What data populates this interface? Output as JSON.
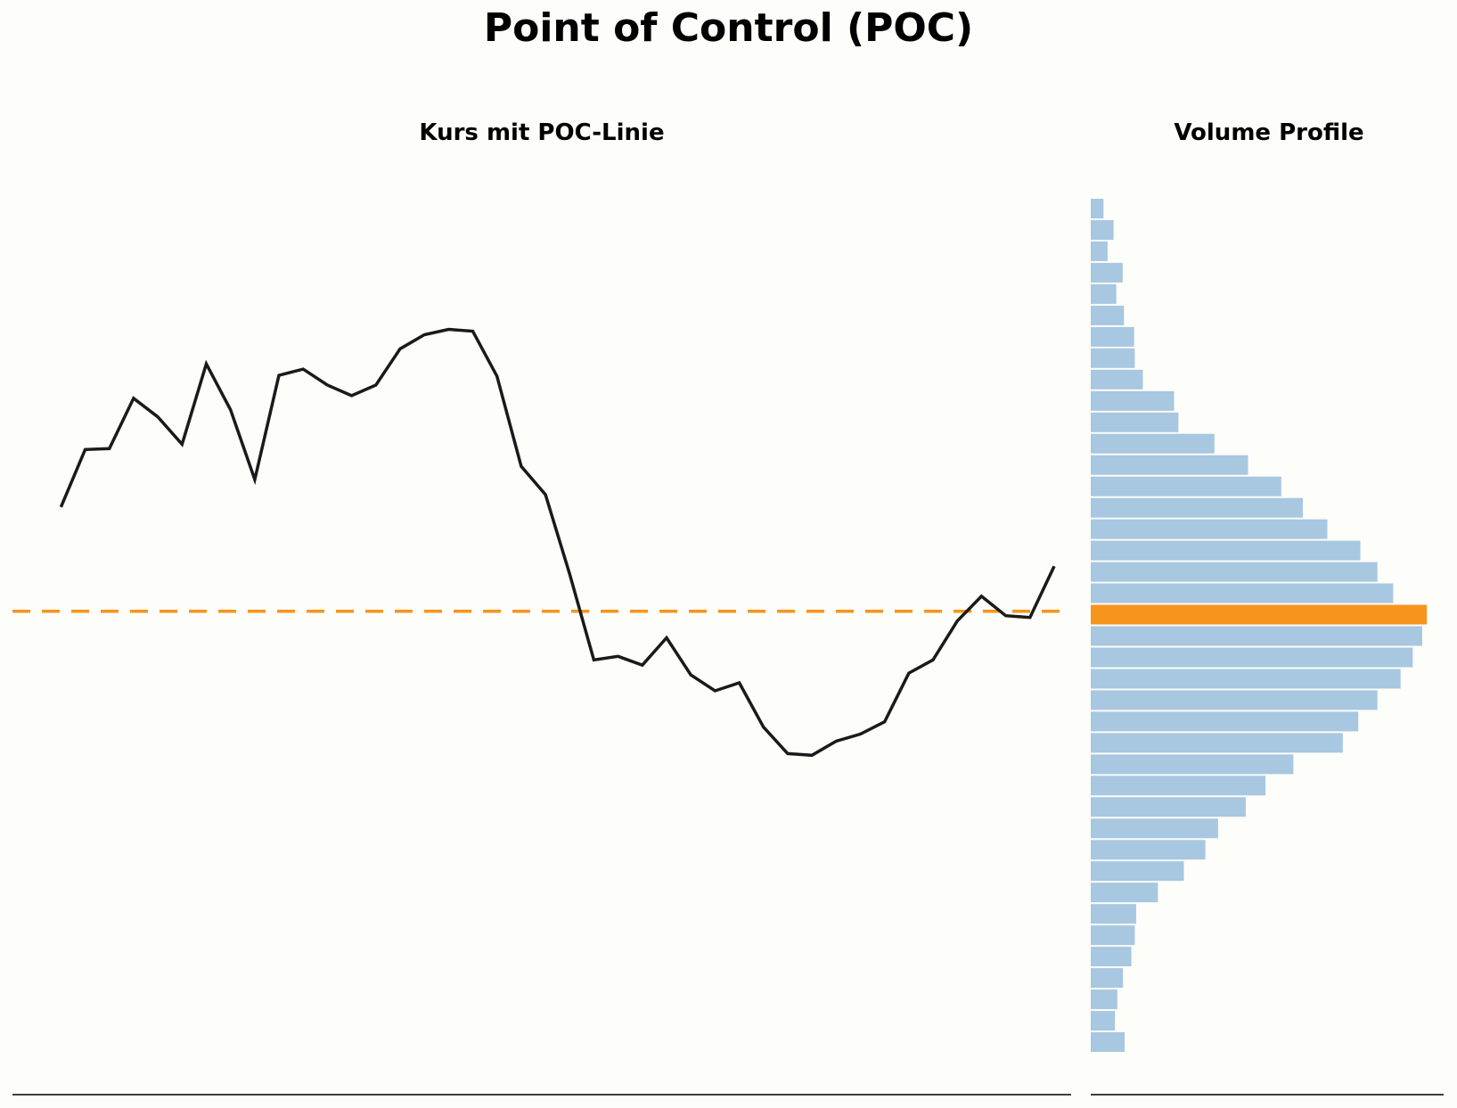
{
  "title": "Point of Control (POC)",
  "chart_data": [
    {
      "type": "line",
      "title": "Kurs mit POC-Linie",
      "x": [
        0,
        1,
        2,
        3,
        4,
        5,
        6,
        7,
        8,
        9,
        10,
        11,
        12,
        13,
        14,
        15,
        16,
        17,
        18,
        19,
        20,
        21,
        22,
        23,
        24,
        25,
        26,
        27,
        28,
        29,
        30,
        31,
        32,
        33,
        34,
        35,
        36,
        37,
        38,
        39,
        40,
        41
      ],
      "series": [
        {
          "values": [
            72.0,
            78.5,
            78.6,
            84.3,
            82.2,
            79.1,
            88.2,
            83.0,
            75.1,
            86.9,
            87.6,
            85.8,
            84.6,
            85.8,
            89.9,
            91.5,
            92.1,
            91.9,
            86.8,
            76.6,
            73.4,
            64.4,
            54.7,
            55.1,
            54.1,
            57.2,
            53.0,
            51.2,
            52.1,
            47.1,
            44.1,
            43.9,
            45.5,
            46.3,
            47.7,
            53.2,
            54.7,
            59.1,
            61.9,
            59.7,
            59.5,
            65.3
          ],
          "color": "#1a1a1a"
        }
      ],
      "poc": {
        "value": 60.2,
        "color": "#f7941d"
      },
      "ylim": [
        109.2,
        5.5
      ],
      "xlim": [
        -2,
        41.7
      ],
      "grid": false,
      "axes": "bottom-spine-only"
    },
    {
      "type": "bar",
      "orientation": "horizontal",
      "title": "Volume Profile",
      "bin_count": 40,
      "values": [
        3.8,
        6.8,
        5.0,
        9.5,
        7.6,
        9.9,
        12.9,
        13.1,
        15.5,
        24.8,
        26.1,
        36.8,
        46.8,
        56.7,
        63.1,
        70.4,
        80.2,
        85.3,
        90.0,
        100.0,
        98.6,
        95.8,
        92.2,
        85.3,
        79.6,
        75.0,
        60.3,
        52.0,
        46.1,
        37.9,
        34.1,
        27.7,
        20.0,
        13.5,
        13.1,
        12.1,
        9.6,
        7.9,
        7.2,
        10.1
      ],
      "bar_color": "#a8c7e0",
      "poc_color": "#f7941d",
      "poc_bin": 19,
      "xlim": [
        0,
        105
      ],
      "grid": false,
      "axes": "bottom-spine-only"
    }
  ]
}
